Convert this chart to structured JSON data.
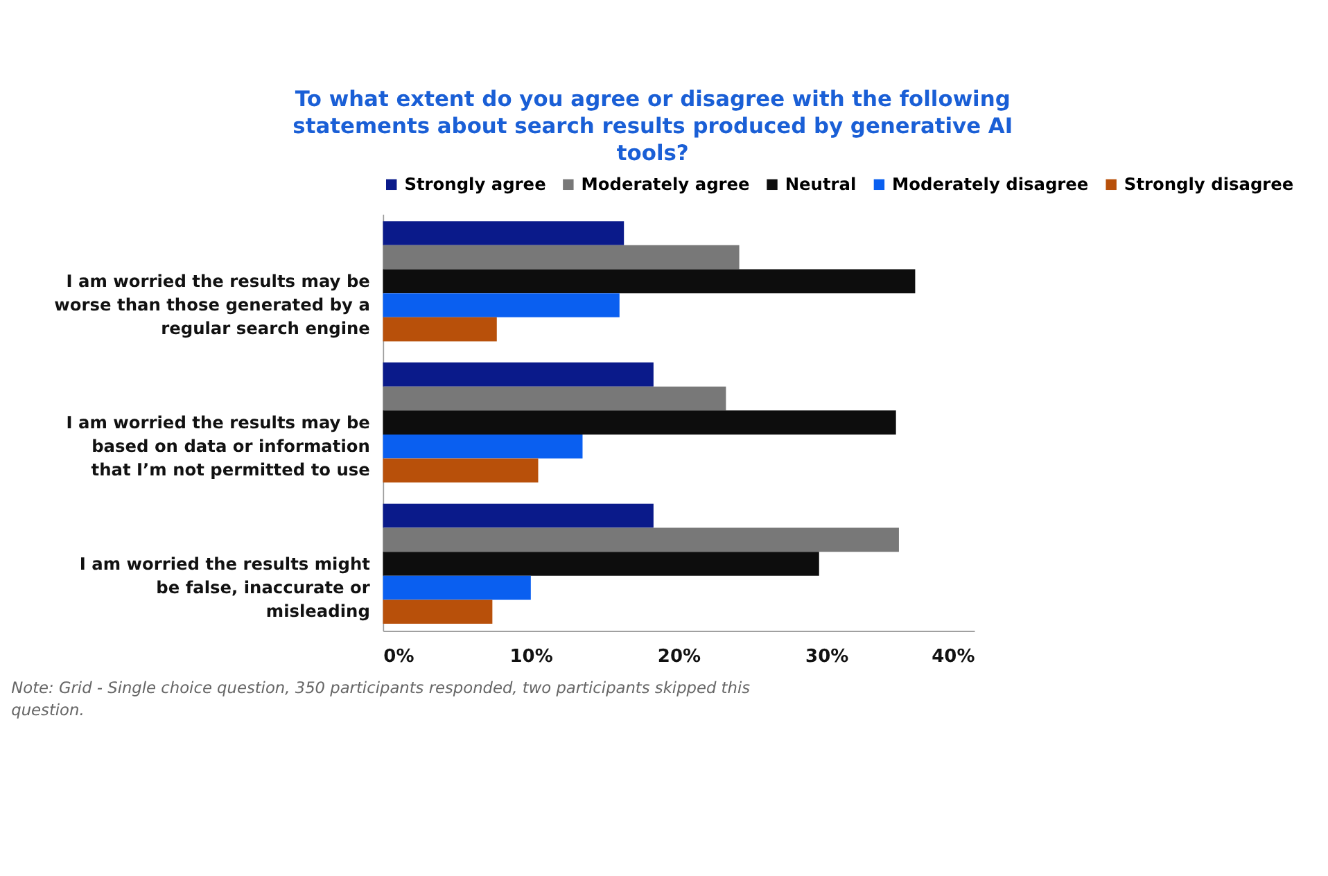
{
  "chart_data": {
    "type": "bar",
    "orientation": "horizontal",
    "title": "To what extent do you agree or disagree with the following statements about search results produced by generative AI tools?",
    "categories": [
      "I am worried the results may be worse than those generated by a regular search engine",
      "I am worried the results may be based on data or information that I’m not permitted to use",
      "I am worried the results might be false, inaccurate or misleading"
    ],
    "series": [
      {
        "name": "Strongly agree",
        "color": "#0a1a8a",
        "values": [
          16.3,
          18.3,
          18.3
        ]
      },
      {
        "name": "Moderately agree",
        "color": "#787878",
        "values": [
          24.1,
          23.2,
          34.9
        ]
      },
      {
        "name": "Neutral",
        "color": "#0d0d0d",
        "values": [
          36.0,
          34.7,
          29.5
        ]
      },
      {
        "name": "Moderately disagree",
        "color": "#0a5ff0",
        "values": [
          16.0,
          13.5,
          10.0
        ]
      },
      {
        "name": "Strongly disagree",
        "color": "#b8500a",
        "values": [
          7.7,
          10.5,
          7.4
        ]
      }
    ],
    "xlim": [
      0,
      40
    ],
    "xticks": [
      {
        "value": 0,
        "label": "0%"
      },
      {
        "value": 10,
        "label": "10%"
      },
      {
        "value": 20,
        "label": "20%"
      },
      {
        "value": 30,
        "label": "30%"
      },
      {
        "value": 40,
        "label": "40%"
      }
    ],
    "grid": false,
    "legend": "top",
    "annotations": [
      "Note: Grid - Single choice question, 350 participants responded, two participants skipped this question."
    ]
  }
}
